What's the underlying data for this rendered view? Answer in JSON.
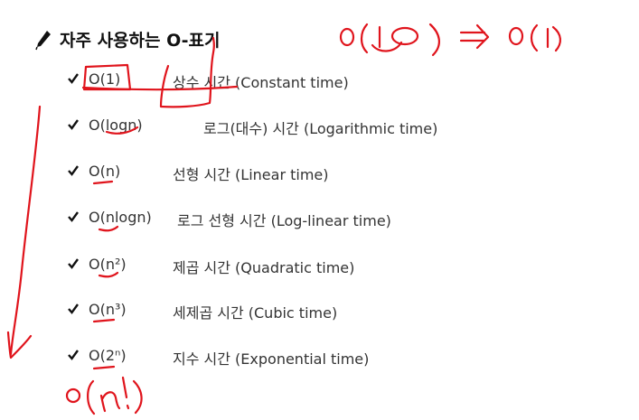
{
  "title": "자주 사용하는 O-표기",
  "items": [
    {
      "notation": "O(1)",
      "description": "상수 시간 (Constant time)"
    },
    {
      "notation": "O(logn)",
      "description": "로그(대수) 시간 (Logarithmic time)"
    },
    {
      "notation": "O(n)",
      "description": "선형 시간 (Linear time)"
    },
    {
      "notation": "O(nlogn)",
      "description": "로그 선형 시간 (Log-linear time)"
    },
    {
      "notation": "O(n²)",
      "description": "제곱 시간 (Quadratic time)"
    },
    {
      "notation": "O(n³)",
      "description": "세제곱 시간 (Cubic time)"
    },
    {
      "notation": "O(2ⁿ)",
      "description": "지수 시간 (Exponential time)"
    }
  ],
  "annotations": {
    "accent_color": "#e0141c",
    "handwritten_top": "O(10) ⇒ O(1)",
    "handwritten_bottom": "O(n!)"
  }
}
